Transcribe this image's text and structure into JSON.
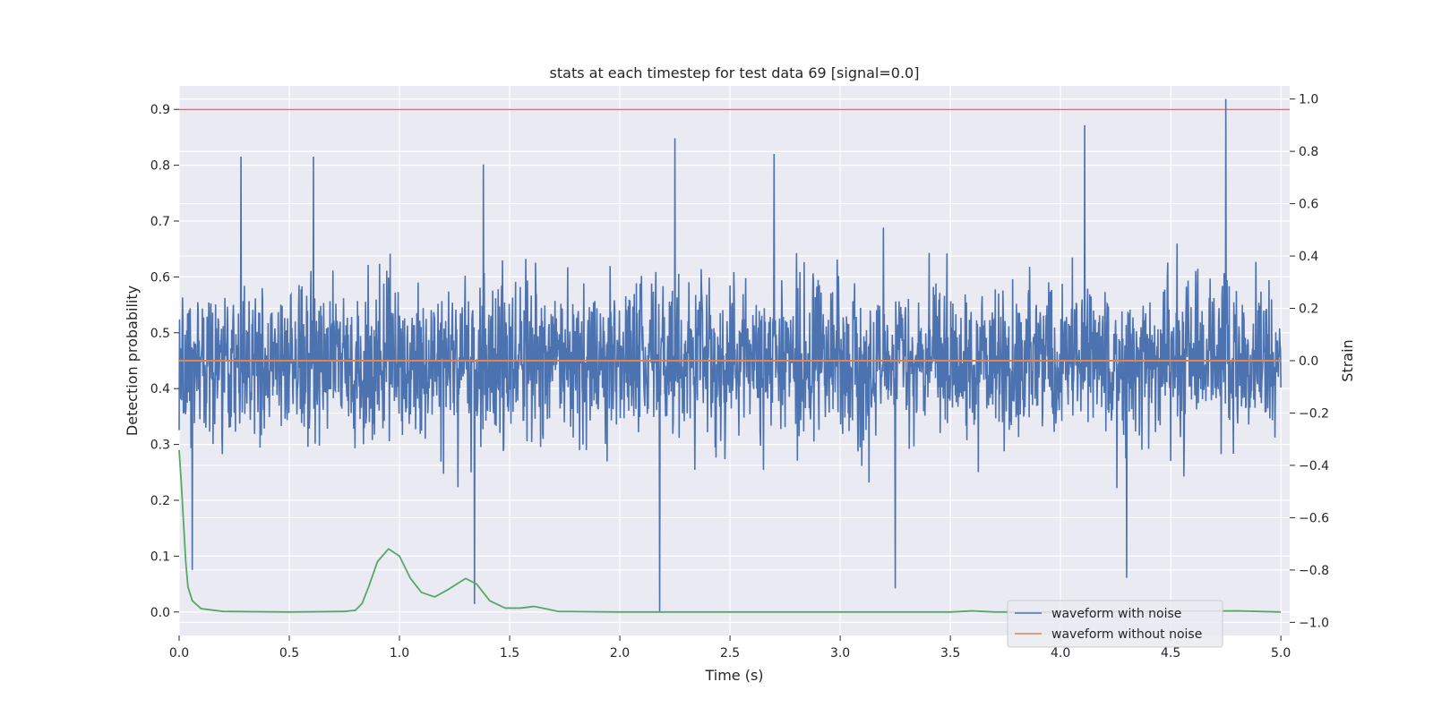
{
  "chart_data": {
    "type": "line",
    "title": "stats at each timestep for test data 69 [signal=0.0]",
    "xlabel": "Time (s)",
    "ylabel_left": "Detection probability",
    "ylabel_right": "Strain",
    "xlim": [
      0.0,
      5.04
    ],
    "ylim_left": [
      -0.042,
      0.942
    ],
    "ylim_right": [
      -1.05,
      1.05
    ],
    "x_ticks": [
      "0.0",
      "0.5",
      "1.0",
      "1.5",
      "2.0",
      "2.5",
      "3.0",
      "3.5",
      "4.0",
      "4.5",
      "5.0"
    ],
    "y_ticks_left": [
      "0.0",
      "0.1",
      "0.2",
      "0.3",
      "0.4",
      "0.5",
      "0.6",
      "0.7",
      "0.8",
      "0.9"
    ],
    "y_ticks_right": [
      "−1.0",
      "−0.8",
      "−0.6",
      "−0.4",
      "−0.2",
      "0.0",
      "0.2",
      "0.4",
      "0.6",
      "0.8",
      "1.0"
    ],
    "grid": true,
    "legend_position": "lower right",
    "threshold": {
      "axis": "left",
      "value": 0.9,
      "color": "#c44e52"
    },
    "series": [
      {
        "name": "waveform with noise",
        "axis": "right",
        "color": "#4c72b0",
        "description": "dense noisy strain trace, mostly between -0.75 and 0.8, peak ~1.0 near t=4.75",
        "noise_amplitude": 0.38,
        "spikes": [
          {
            "x": 0.28,
            "y": 0.78
          },
          {
            "x": 0.61,
            "y": 0.78
          },
          {
            "x": 1.38,
            "y": 0.75
          },
          {
            "x": 2.25,
            "y": 0.85
          },
          {
            "x": 2.7,
            "y": 0.79
          },
          {
            "x": 4.11,
            "y": 0.9
          },
          {
            "x": 4.75,
            "y": 1.0
          },
          {
            "x": 2.18,
            "y": -0.96
          },
          {
            "x": 3.25,
            "y": -0.87
          },
          {
            "x": 1.34,
            "y": -0.93
          },
          {
            "x": 0.06,
            "y": -0.8
          },
          {
            "x": 4.3,
            "y": -0.83
          }
        ]
      },
      {
        "name": "waveform without noise",
        "axis": "right",
        "color": "#dd8452",
        "values": [
          [
            0.0,
            0.0
          ],
          [
            5.0,
            0.0
          ]
        ]
      },
      {
        "name": "",
        "axis": "left",
        "color": "#55a868",
        "points": [
          [
            0.0,
            0.29
          ],
          [
            0.01,
            0.23
          ],
          [
            0.02,
            0.16
          ],
          [
            0.03,
            0.09
          ],
          [
            0.04,
            0.045
          ],
          [
            0.06,
            0.02
          ],
          [
            0.1,
            0.006
          ],
          [
            0.2,
            0.001
          ],
          [
            0.5,
            0.0
          ],
          [
            0.75,
            0.001
          ],
          [
            0.8,
            0.003
          ],
          [
            0.83,
            0.015
          ],
          [
            0.86,
            0.045
          ],
          [
            0.9,
            0.09
          ],
          [
            0.95,
            0.113
          ],
          [
            1.0,
            0.1
          ],
          [
            1.05,
            0.06
          ],
          [
            1.1,
            0.035
          ],
          [
            1.16,
            0.027
          ],
          [
            1.22,
            0.04
          ],
          [
            1.3,
            0.06
          ],
          [
            1.35,
            0.05
          ],
          [
            1.41,
            0.02
          ],
          [
            1.48,
            0.007
          ],
          [
            1.55,
            0.007
          ],
          [
            1.61,
            0.01
          ],
          [
            1.66,
            0.006
          ],
          [
            1.72,
            0.001
          ],
          [
            2.0,
            0.0
          ],
          [
            3.5,
            0.0
          ],
          [
            3.6,
            0.002
          ],
          [
            3.7,
            0.0
          ],
          [
            4.0,
            0.0
          ],
          [
            4.8,
            0.002
          ],
          [
            5.0,
            0.0
          ]
        ]
      }
    ]
  }
}
